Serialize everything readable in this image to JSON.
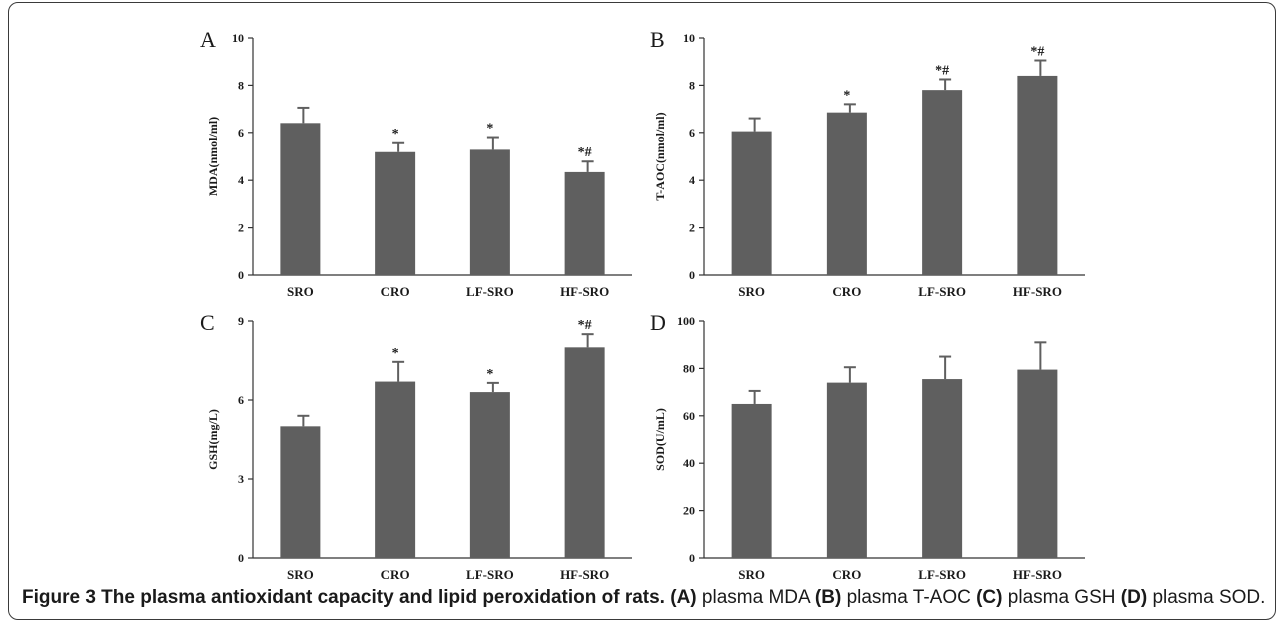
{
  "figure": {
    "caption_title": "Figure 3 The plasma antioxidant capacity and lipid peroxidation of rats.",
    "caption_items": [
      {
        "tag": "(A)",
        "text": "plasma MDA"
      },
      {
        "tag": "(B)",
        "text": "plasma T-AOC"
      },
      {
        "tag": "(C)",
        "text": "plasma GSH"
      },
      {
        "tag": "(D)",
        "text": "plasma SOD."
      }
    ]
  },
  "colors": {
    "bar": "#5f5f5f",
    "axis": "#333333",
    "text": "#1a1a1a"
  },
  "chart_data": [
    {
      "type": "bar",
      "panel": "A",
      "title": "",
      "xlabel": "",
      "ylabel": "MDA(nmol/ml)",
      "categories": [
        "SRO",
        "CRO",
        "LF-SRO",
        "HF-SRO"
      ],
      "values": [
        6.4,
        5.2,
        5.3,
        4.35
      ],
      "errors": [
        0.65,
        0.38,
        0.5,
        0.45
      ],
      "annotations": [
        "",
        "*",
        "*",
        "*#"
      ],
      "ylim": [
        0,
        10
      ],
      "yticks": [
        0,
        2,
        4,
        6,
        8,
        10
      ]
    },
    {
      "type": "bar",
      "panel": "B",
      "title": "",
      "xlabel": "",
      "ylabel": "T-AOC(nmol/ml)",
      "categories": [
        "SRO",
        "CRO",
        "LF-SRO",
        "HF-SRO"
      ],
      "values": [
        6.05,
        6.85,
        7.8,
        8.4
      ],
      "errors": [
        0.55,
        0.35,
        0.45,
        0.65
      ],
      "annotations": [
        "",
        "*",
        "*#",
        "*#"
      ],
      "ylim": [
        0,
        10
      ],
      "yticks": [
        0,
        2,
        4,
        6,
        8,
        10
      ]
    },
    {
      "type": "bar",
      "panel": "C",
      "title": "",
      "xlabel": "",
      "ylabel": "GSH(mg/L)",
      "categories": [
        "SRO",
        "CRO",
        "LF-SRO",
        "HF-SRO"
      ],
      "values": [
        5.0,
        6.7,
        6.3,
        8.0
      ],
      "errors": [
        0.4,
        0.75,
        0.35,
        0.5
      ],
      "annotations": [
        "",
        "*",
        "*",
        "*#"
      ],
      "ylim": [
        0,
        9
      ],
      "yticks": [
        0,
        3,
        6,
        9
      ]
    },
    {
      "type": "bar",
      "panel": "D",
      "title": "",
      "xlabel": "",
      "ylabel": "SOD(U/mL)",
      "categories": [
        "SRO",
        "CRO",
        "LF-SRO",
        "HF-SRO"
      ],
      "values": [
        65,
        74,
        75.5,
        79.5
      ],
      "errors": [
        5.5,
        6.5,
        9.5,
        11.5
      ],
      "annotations": [
        "",
        "",
        "",
        ""
      ],
      "ylim": [
        0,
        100
      ],
      "yticks": [
        0,
        20,
        40,
        60,
        80,
        100
      ]
    }
  ]
}
